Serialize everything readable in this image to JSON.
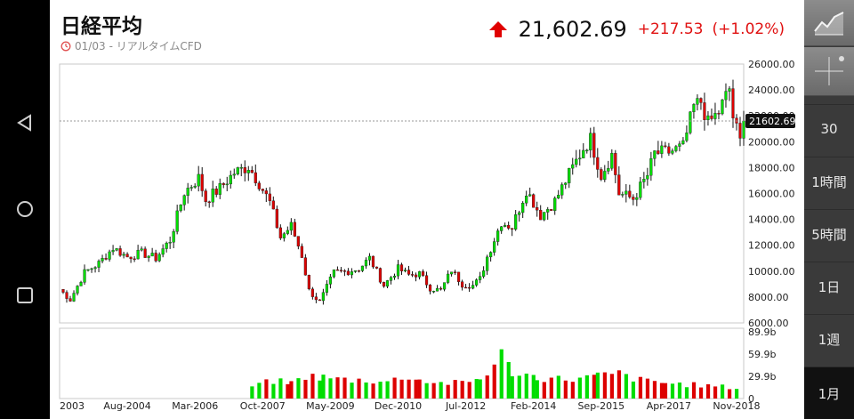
{
  "header": {
    "title": "日経平均",
    "timestamp": "01/03",
    "source_label": "- リアルタイムCFD",
    "price": "21,602.69",
    "change": "+217.53",
    "change_pct": "(+1.02%)",
    "up_color": "#e00000",
    "direction": "up"
  },
  "toolbar": {
    "chart_type_icon": "line-chart-icon",
    "crosshair_icon": "crosshair-icon",
    "timeframes": [
      "30",
      "1時間",
      "5時間",
      "1日",
      "1週",
      "1月"
    ],
    "active_timeframe": "1月"
  },
  "navbar": {
    "icons": [
      "back-icon",
      "home-icon",
      "recents-icon"
    ]
  },
  "chart_data": {
    "type": "candlestick",
    "y_ticks": [
      "26000.00",
      "24000.00",
      "22000.00",
      "20000.00",
      "18000.00",
      "16000.00",
      "14000.00",
      "12000.00",
      "10000.00",
      "8000.00",
      "6000.00"
    ],
    "ylim": [
      6000,
      26000
    ],
    "current_value_label": "21602.69",
    "current_value": 21602.69,
    "x_ticks": [
      "2003",
      "Aug-2004",
      "Mar-2006",
      "Oct-2007",
      "May-2009",
      "Dec-2010",
      "Jul-2012",
      "Feb-2014",
      "Sep-2015",
      "Apr-2017",
      "Nov-2018"
    ],
    "x_start": "2003-01",
    "x_end": "2019-01",
    "up_color": "#00dd00",
    "down_color": "#dd0000",
    "price_points": [
      {
        "date": "2003-01",
        "close": 8600
      },
      {
        "date": "2003-04",
        "close": 7800
      },
      {
        "date": "2003-08",
        "close": 9900
      },
      {
        "date": "2003-12",
        "close": 10600
      },
      {
        "date": "2004-04",
        "close": 11800
      },
      {
        "date": "2004-08",
        "close": 11100
      },
      {
        "date": "2004-12",
        "close": 11400
      },
      {
        "date": "2005-04",
        "close": 11000
      },
      {
        "date": "2005-08",
        "close": 12400
      },
      {
        "date": "2005-12",
        "close": 16100
      },
      {
        "date": "2006-04",
        "close": 17200
      },
      {
        "date": "2006-06",
        "close": 15500
      },
      {
        "date": "2006-10",
        "close": 16400
      },
      {
        "date": "2007-02",
        "close": 17600
      },
      {
        "date": "2007-06",
        "close": 18100
      },
      {
        "date": "2007-09",
        "close": 16800
      },
      {
        "date": "2007-12",
        "close": 15300
      },
      {
        "date": "2008-03",
        "close": 12600
      },
      {
        "date": "2008-06",
        "close": 13500
      },
      {
        "date": "2008-09",
        "close": 11200
      },
      {
        "date": "2008-11",
        "close": 8500
      },
      {
        "date": "2009-02",
        "close": 7600
      },
      {
        "date": "2009-06",
        "close": 9900
      },
      {
        "date": "2009-10",
        "close": 10000
      },
      {
        "date": "2010-01",
        "close": 10200
      },
      {
        "date": "2010-04",
        "close": 11000
      },
      {
        "date": "2010-08",
        "close": 8900
      },
      {
        "date": "2010-12",
        "close": 10200
      },
      {
        "date": "2011-03",
        "close": 9700
      },
      {
        "date": "2011-06",
        "close": 9800
      },
      {
        "date": "2011-09",
        "close": 8700
      },
      {
        "date": "2011-12",
        "close": 8500
      },
      {
        "date": "2012-03",
        "close": 10100
      },
      {
        "date": "2012-06",
        "close": 9000
      },
      {
        "date": "2012-09",
        "close": 8900
      },
      {
        "date": "2012-11",
        "close": 9400
      },
      {
        "date": "2013-01",
        "close": 11100
      },
      {
        "date": "2013-05",
        "close": 13800
      },
      {
        "date": "2013-08",
        "close": 13400
      },
      {
        "date": "2013-12",
        "close": 16300
      },
      {
        "date": "2014-04",
        "close": 14300
      },
      {
        "date": "2014-08",
        "close": 15400
      },
      {
        "date": "2014-12",
        "close": 17500
      },
      {
        "date": "2015-04",
        "close": 19500
      },
      {
        "date": "2015-06",
        "close": 20200
      },
      {
        "date": "2015-09",
        "close": 17400
      },
      {
        "date": "2015-12",
        "close": 19000
      },
      {
        "date": "2016-02",
        "close": 16000
      },
      {
        "date": "2016-06",
        "close": 15600
      },
      {
        "date": "2016-10",
        "close": 17400
      },
      {
        "date": "2016-12",
        "close": 19100
      },
      {
        "date": "2017-04",
        "close": 19200
      },
      {
        "date": "2017-08",
        "close": 19600
      },
      {
        "date": "2017-11",
        "close": 22700
      },
      {
        "date": "2018-01",
        "close": 23100
      },
      {
        "date": "2018-03",
        "close": 21400
      },
      {
        "date": "2018-06",
        "close": 22300
      },
      {
        "date": "2018-09",
        "close": 24100
      },
      {
        "date": "2018-10",
        "close": 21900
      },
      {
        "date": "2018-12",
        "close": 20000
      },
      {
        "date": "2019-01",
        "close": 21600
      }
    ],
    "volume_ticks": [
      "89.9b",
      "59.9b",
      "29.9b",
      "0"
    ],
    "volume_max": 89.9,
    "volume_start": "2007-07",
    "volume_points": [
      {
        "date": "2007-07",
        "value": 18
      },
      {
        "date": "2008-01",
        "value": 25
      },
      {
        "date": "2008-06",
        "value": 22
      },
      {
        "date": "2008-10",
        "value": 32
      },
      {
        "date": "2009-03",
        "value": 30
      },
      {
        "date": "2009-09",
        "value": 27
      },
      {
        "date": "2010-03",
        "value": 26
      },
      {
        "date": "2010-09",
        "value": 24
      },
      {
        "date": "2011-03",
        "value": 32
      },
      {
        "date": "2011-06",
        "value": 26
      },
      {
        "date": "2011-12",
        "value": 22
      },
      {
        "date": "2012-06",
        "value": 22
      },
      {
        "date": "2012-11",
        "value": 28
      },
      {
        "date": "2013-03",
        "value": 48
      },
      {
        "date": "2013-05",
        "value": 62
      },
      {
        "date": "2013-08",
        "value": 38
      },
      {
        "date": "2014-03",
        "value": 30
      },
      {
        "date": "2014-09",
        "value": 28
      },
      {
        "date": "2015-03",
        "value": 28
      },
      {
        "date": "2015-08",
        "value": 32
      },
      {
        "date": "2016-02",
        "value": 35
      },
      {
        "date": "2016-08",
        "value": 26
      },
      {
        "date": "2017-03",
        "value": 22
      },
      {
        "date": "2017-09",
        "value": 20
      },
      {
        "date": "2018-03",
        "value": 18
      },
      {
        "date": "2018-09",
        "value": 16
      },
      {
        "date": "2019-01",
        "value": 14
      }
    ]
  }
}
